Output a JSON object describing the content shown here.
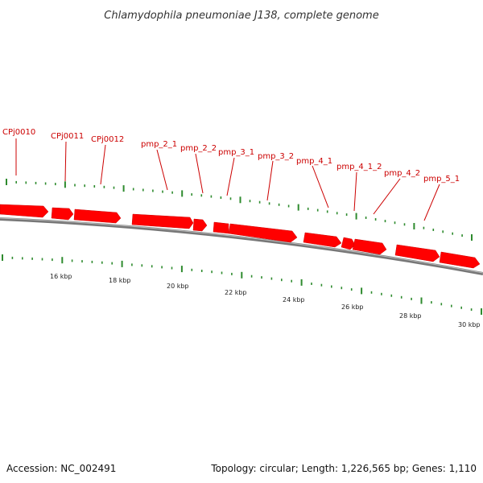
{
  "title": "Chlamydophila pneumoniae J138, complete genome",
  "footer": {
    "accession": "Accession: NC_002491",
    "summary": "Topology: circular; Length: 1,226,565 bp; Genes: 1,110"
  },
  "colors": {
    "gene": "#ff0000",
    "gene_label": "#cc0000",
    "backbone": "#777777",
    "ticks": "#2e8b2e"
  },
  "gene_labels": [
    {
      "text": "CPj0010"
    },
    {
      "text": "CPj0011"
    },
    {
      "text": "CPj0012"
    },
    {
      "text": "pmp_2_1"
    },
    {
      "text": "pmp_2_2"
    },
    {
      "text": "pmp_3_1"
    },
    {
      "text": "pmp_3_2"
    },
    {
      "text": "pmp_4_1"
    },
    {
      "text": "pmp_4_1_2"
    },
    {
      "text": "pmp_4_2"
    },
    {
      "text": "pmp_5_1"
    }
  ],
  "scale_labels": [
    "16 kbp",
    "18 kbp",
    "20 kbp",
    "22 kbp",
    "24 kbp",
    "26 kbp",
    "28 kbp",
    "30 kbp"
  ]
}
